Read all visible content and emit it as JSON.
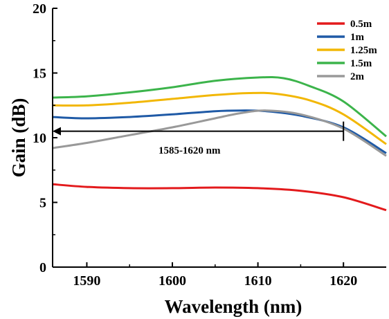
{
  "chart_data": {
    "type": "line",
    "title": "",
    "xlabel": "Wavelength (nm)",
    "ylabel": "Gain (dB)",
    "xlim": [
      1586,
      1625
    ],
    "ylim": [
      0,
      20
    ],
    "xticks": [
      1590,
      1600,
      1610,
      1620
    ],
    "yticks": [
      0,
      5,
      10,
      15,
      20
    ],
    "grid": false,
    "legend_position": "top-right",
    "series": [
      {
        "name": "0.5m",
        "color": "#e31a1c",
        "x": [
          1586,
          1590,
          1595,
          1600,
          1605,
          1610,
          1615,
          1620,
          1625
        ],
        "y": [
          6.4,
          6.2,
          6.1,
          6.1,
          6.15,
          6.1,
          5.9,
          5.4,
          4.4
        ]
      },
      {
        "name": "1m",
        "color": "#1f5aa6",
        "x": [
          1586,
          1590,
          1595,
          1600,
          1605,
          1608,
          1611,
          1615,
          1620,
          1625
        ],
        "y": [
          11.6,
          11.5,
          11.6,
          11.8,
          12.05,
          12.1,
          12.05,
          11.7,
          10.8,
          8.8
        ]
      },
      {
        "name": "1.25m",
        "color": "#f2b705",
        "x": [
          1586,
          1590,
          1595,
          1600,
          1605,
          1609,
          1612,
          1616,
          1620,
          1625
        ],
        "y": [
          12.5,
          12.5,
          12.7,
          13.0,
          13.3,
          13.45,
          13.4,
          12.9,
          11.8,
          9.5
        ]
      },
      {
        "name": "1.5m",
        "color": "#3cb44b",
        "x": [
          1586,
          1590,
          1595,
          1600,
          1605,
          1610,
          1613,
          1616,
          1620,
          1625
        ],
        "y": [
          13.1,
          13.2,
          13.5,
          13.9,
          14.4,
          14.65,
          14.6,
          14.0,
          12.8,
          10.1
        ]
      },
      {
        "name": "2m",
        "color": "#999999",
        "x": [
          1586,
          1590,
          1595,
          1600,
          1605,
          1608,
          1611,
          1615,
          1620,
          1625
        ],
        "y": [
          9.2,
          9.6,
          10.2,
          10.8,
          11.5,
          11.9,
          12.1,
          11.8,
          10.7,
          8.6
        ]
      }
    ],
    "annotations": [
      {
        "text": "1585-1620 nm",
        "arrow_x_start": 1586,
        "arrow_x_end": 1620,
        "arrow_y": 10.5,
        "label_x": 1602,
        "label_y": 9.2
      }
    ]
  }
}
